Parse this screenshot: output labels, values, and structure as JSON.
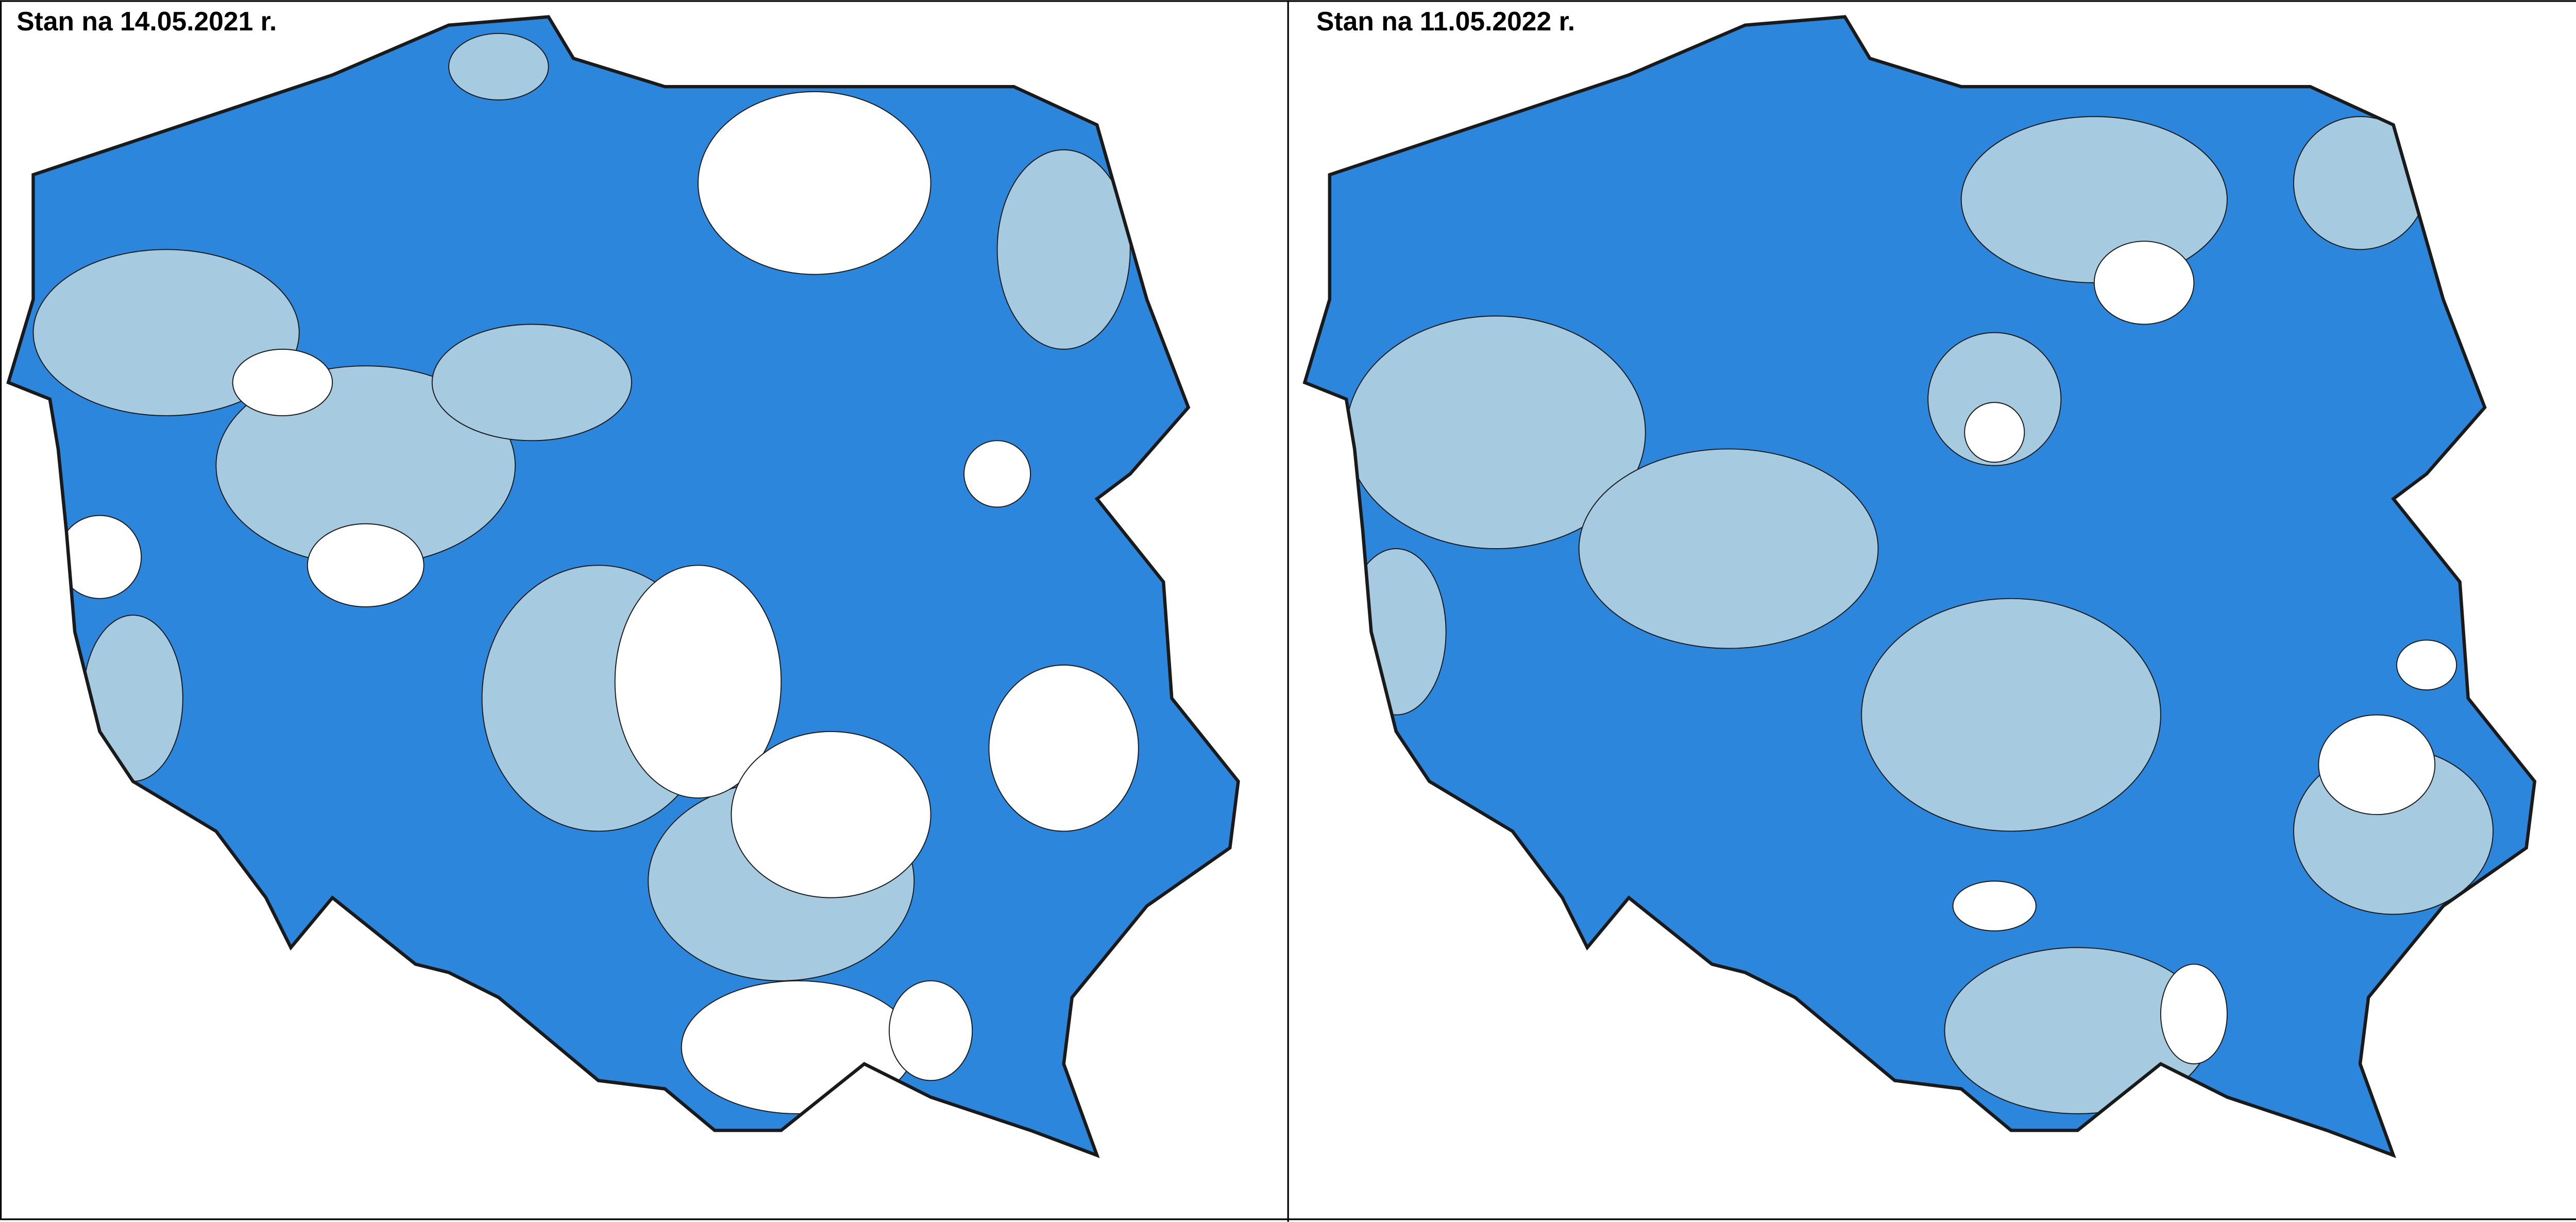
{
  "panels": [
    {
      "title": "Stan na 14.05.2021 r."
    },
    {
      "title": "Stan na 11.05.2022 r."
    }
  ]
}
